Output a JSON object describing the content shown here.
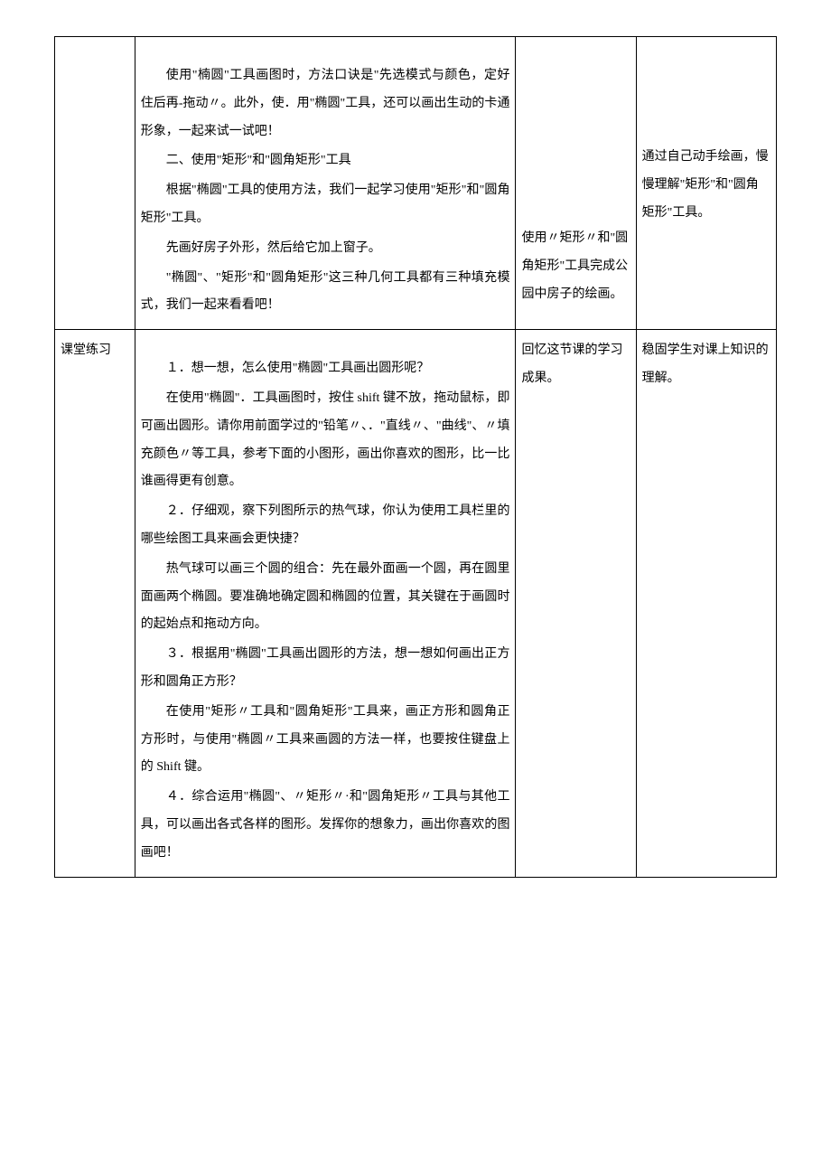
{
  "row1": {
    "col1": "",
    "col2": {
      "p1": "使用\"楠圆\"工具画图时，方法口诀是\"先选模式与颜色，定好住后再-拖动〃。此外，使．用\"椭圆\"工具，还可以画出生动的卡通形象，一起来试一试吧！",
      "p2": "二、使用\"矩形\"和\"圆角矩形\"工具",
      "p3": "根据\"椭圆\"工具的使用方法，我们一起学习使用\"矩形\"和\"圆角矩形\"工具。",
      "p4": "先画好房子外形，然后给它加上窗子。",
      "p5": "\"椭圆\"、\"矩形\"和\"圆角矩形\"这三种几何工具都有三种填充模式，我们一起来看看吧！"
    },
    "col3": "使用〃矩形〃和\"圆角矩形\"工具完成公园中房子的绘画。",
    "col4": "通过自己动手绘画，慢慢理解\"矩形\"和\"圆角矩形\"工具。"
  },
  "row2": {
    "col1": "课堂练习",
    "col2": {
      "p1": "１．想一想，怎么使用\"椭圆\"工具画出圆形呢？",
      "p2": "在使用\"椭圆\"．工具画图时，按住 shift 键不放，拖动鼠标，即可画出圆形。请你用前面学过的\"铅笔〃、．\"直线〃、\"曲线\"、〃填充颜色〃等工具，参考下面的小图形，画出你喜欢的图形，比一比谁画得更有创意。",
      "p3": "２．仔细观，察下列图所示的热气球，你认为使用工具栏里的哪些绘图工具来画会更快捷？",
      "p4": "热气球可以画三个圆的组合：先在最外面画一个圆，再在圆里面画两个椭圆。要准确地确定圆和椭圆的位置，其关键在于画圆时的起始点和拖动方向。",
      "p5": "３．根据用\"椭圆\"工具画出圆形的方法，想一想如何画出正方形和圆角正方形？",
      "p6": "在使用\"矩形〃工具和\"圆角矩形\"工具来，画正方形和圆角正方形时，与使用\"椭圆〃工具来画圆的方法一样，也要按住键盘上的 Shift 键。",
      "p7": "４．综合运用\"椭圆\"、〃矩形〃·和\"圆角矩形〃工具与其他工具，可以画出各式各样的图形。发挥你的想象力，画出你喜欢的图画吧！"
    },
    "col3": "回忆这节课的学习成果。",
    "col4": "稳固学生对课上知识的理解。"
  }
}
